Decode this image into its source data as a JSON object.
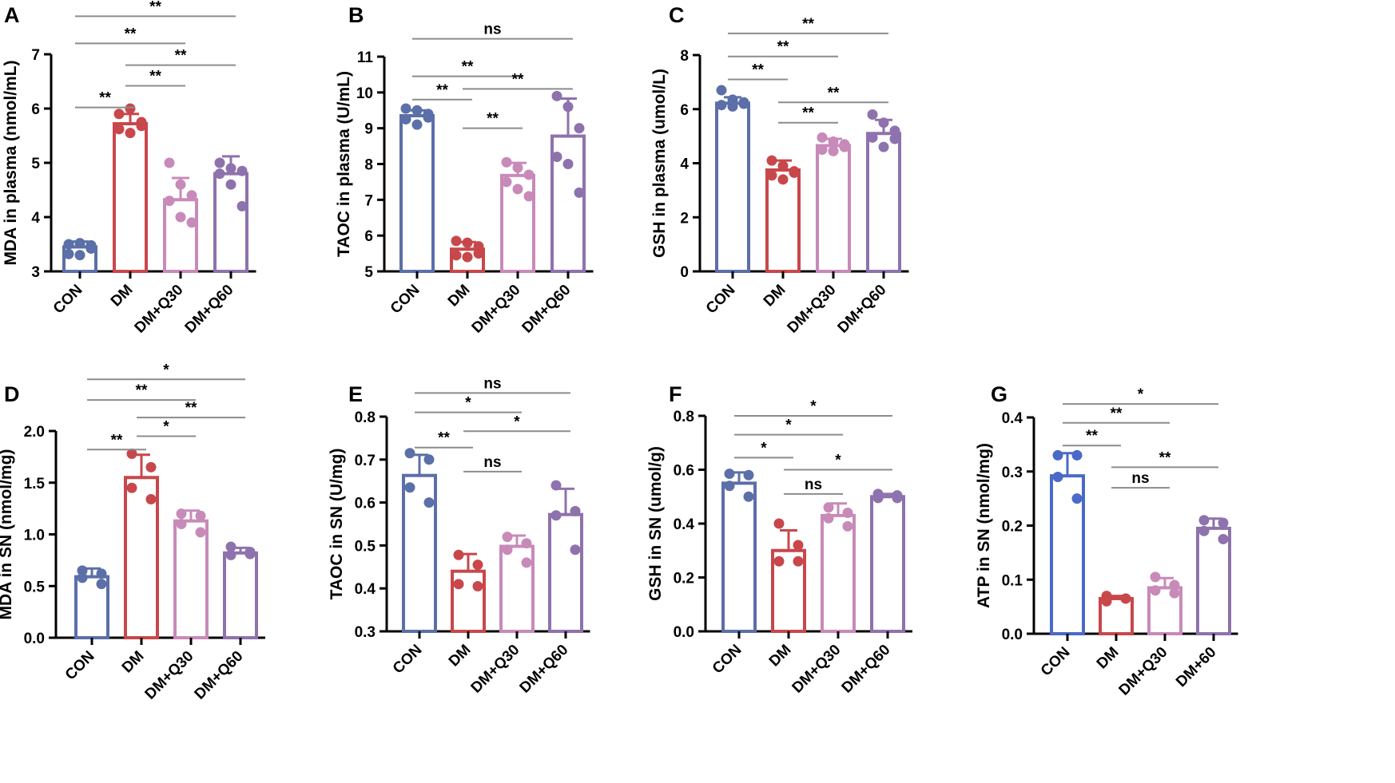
{
  "figure": {
    "title": ""
  },
  "colors": {
    "CON": "#5b6fa8",
    "DM": "#c8474b",
    "DM+Q30": "#c88ab9",
    "DM+Q60": "#8e72ad",
    "CON_G": "#4a69c8",
    "axis": "#000000",
    "bracket": "#8c8c8c"
  },
  "chart_data": [
    {
      "panel": "A",
      "type": "bar",
      "title": "",
      "xlabel": "",
      "ylabel": "MDA in plasma (nmol/mL)",
      "categories": [
        "CON",
        "DM",
        "DM+Q30",
        "DM+Q60"
      ],
      "ylim": [
        3,
        7
      ],
      "yticks": [
        3,
        4,
        5,
        6,
        7
      ],
      "values": [
        3.45,
        5.72,
        4.32,
        4.8
      ],
      "errors": [
        0.1,
        0.18,
        0.4,
        0.32
      ],
      "points": [
        [
          3.5,
          3.52,
          3.48,
          3.32,
          3.3,
          3.42
        ],
        [
          5.9,
          6.0,
          5.68,
          5.62,
          5.55,
          5.75
        ],
        [
          5.0,
          4.6,
          4.4,
          4.3,
          4.0,
          3.9
        ],
        [
          5.0,
          4.9,
          4.85,
          4.8,
          4.6,
          4.2
        ]
      ],
      "comparisons": [
        {
          "from": 0,
          "to": 3,
          "label": "**",
          "y": 7.7
        },
        {
          "from": 0,
          "to": 2,
          "label": "**",
          "y": 7.2
        },
        {
          "from": 1,
          "to": 3,
          "label": "**",
          "y": 6.8
        },
        {
          "from": 1,
          "to": 2,
          "label": "**",
          "y": 6.42
        },
        {
          "from": 0,
          "to": 1,
          "label": "**",
          "y": 6.02
        }
      ]
    },
    {
      "panel": "B",
      "type": "bar",
      "title": "",
      "xlabel": "",
      "ylabel": "TAOC in plasma (U/mL)",
      "categories": [
        "CON",
        "DM",
        "DM+Q30",
        "DM+Q60"
      ],
      "ylim": [
        5,
        11
      ],
      "yticks": [
        5,
        6,
        7,
        8,
        9,
        10,
        11
      ],
      "values": [
        9.35,
        5.62,
        7.68,
        8.78
      ],
      "errors": [
        0.15,
        0.2,
        0.35,
        1.05
      ],
      "points": [
        [
          9.55,
          9.5,
          9.4,
          9.25,
          9.1,
          9.3
        ],
        [
          5.85,
          5.8,
          5.7,
          5.45,
          5.4,
          5.5
        ],
        [
          8.05,
          7.9,
          7.7,
          7.5,
          7.3,
          7.1
        ],
        [
          9.9,
          9.6,
          9.0,
          8.2,
          8.0,
          7.2
        ]
      ],
      "comparisons": [
        {
          "from": 0,
          "to": 3,
          "label": "ns",
          "y": 11.5
        },
        {
          "from": 0,
          "to": 2,
          "label": "**",
          "y": 10.45
        },
        {
          "from": 1,
          "to": 3,
          "label": "**",
          "y": 10.1
        },
        {
          "from": 0,
          "to": 1,
          "label": "**",
          "y": 9.8
        },
        {
          "from": 1,
          "to": 2,
          "label": "**",
          "y": 9.0
        }
      ]
    },
    {
      "panel": "C",
      "type": "bar",
      "title": "",
      "xlabel": "",
      "ylabel": "GSH in plasma (umol/L)",
      "categories": [
        "CON",
        "DM",
        "DM+Q30",
        "DM+Q60"
      ],
      "ylim": [
        0,
        8
      ],
      "yticks": [
        0,
        2,
        4,
        6,
        8
      ],
      "values": [
        6.22,
        3.75,
        4.65,
        5.1
      ],
      "errors": [
        0.22,
        0.35,
        0.25,
        0.5
      ],
      "points": [
        [
          6.7,
          6.35,
          6.2,
          6.15,
          6.1,
          6.25
        ],
        [
          4.1,
          3.9,
          3.7,
          3.55,
          3.4,
          3.65
        ],
        [
          4.95,
          4.8,
          4.6,
          4.5,
          4.45,
          4.7
        ],
        [
          5.8,
          5.5,
          5.2,
          4.95,
          4.6,
          4.9
        ]
      ],
      "comparisons": [
        {
          "from": 0,
          "to": 3,
          "label": "**",
          "y": 8.8
        },
        {
          "from": 0,
          "to": 2,
          "label": "**",
          "y": 7.95
        },
        {
          "from": 0,
          "to": 1,
          "label": "**",
          "y": 7.1
        },
        {
          "from": 1,
          "to": 3,
          "label": "**",
          "y": 6.25
        },
        {
          "from": 1,
          "to": 2,
          "label": "**",
          "y": 5.5
        }
      ]
    },
    {
      "panel": "D",
      "type": "bar",
      "title": "",
      "xlabel": "",
      "ylabel": "MDA in SN (nmol/mg)",
      "categories": [
        "CON",
        "DM",
        "DM+Q30",
        "DM+Q60"
      ],
      "ylim": [
        0,
        2
      ],
      "yticks": [
        0.0,
        0.5,
        1.0,
        1.5,
        2.0
      ],
      "ytickFormat": 1,
      "values": [
        0.59,
        1.55,
        1.13,
        0.82
      ],
      "errors": [
        0.08,
        0.22,
        0.1,
        0.05
      ],
      "points": [
        [
          0.65,
          0.62,
          0.58,
          0.52
        ],
        [
          1.78,
          1.65,
          1.45,
          1.34
        ],
        [
          1.2,
          1.18,
          1.1,
          1.02
        ],
        [
          0.88,
          0.83,
          0.8,
          0.81
        ]
      ],
      "comparisons": [
        {
          "from": 0,
          "to": 3,
          "label": "*",
          "y": 2.5
        },
        {
          "from": 0,
          "to": 2,
          "label": "**",
          "y": 2.3
        },
        {
          "from": 1,
          "to": 3,
          "label": "**",
          "y": 2.13
        },
        {
          "from": 1,
          "to": 2,
          "label": "*",
          "y": 1.95
        },
        {
          "from": 0,
          "to": 1,
          "label": "**",
          "y": 1.82
        }
      ]
    },
    {
      "panel": "E",
      "type": "bar",
      "title": "",
      "xlabel": "",
      "ylabel": "TAOC in SN (U/mg)",
      "categories": [
        "CON",
        "DM",
        "DM+Q30",
        "DM+Q60"
      ],
      "ylim": [
        0.3,
        0.8
      ],
      "yticks": [
        0.3,
        0.4,
        0.5,
        0.6,
        0.7,
        0.8
      ],
      "ytickFormat": 1,
      "values": [
        0.663,
        0.44,
        0.498,
        0.572
      ],
      "errors": [
        0.048,
        0.04,
        0.025,
        0.06
      ],
      "points": [
        [
          0.715,
          0.7,
          0.635,
          0.6
        ],
        [
          0.478,
          0.455,
          0.41,
          0.405
        ],
        [
          0.52,
          0.505,
          0.49,
          0.46
        ],
        [
          0.64,
          0.58,
          0.57,
          0.49
        ]
      ],
      "comparisons": [
        {
          "from": 0,
          "to": 3,
          "label": "ns",
          "y": 0.855
        },
        {
          "from": 0,
          "to": 2,
          "label": "*",
          "y": 0.81
        },
        {
          "from": 1,
          "to": 3,
          "label": "*",
          "y": 0.766
        },
        {
          "from": 0,
          "to": 1,
          "label": "**",
          "y": 0.728
        },
        {
          "from": 1,
          "to": 2,
          "label": "ns",
          "y": 0.672
        }
      ]
    },
    {
      "panel": "F",
      "type": "bar",
      "title": "",
      "xlabel": "",
      "ylabel": "GSH in SN (umol/g)",
      "categories": [
        "CON",
        "DM",
        "DM+Q30",
        "DM+Q60"
      ],
      "ylim": [
        0,
        0.8
      ],
      "yticks": [
        0.0,
        0.2,
        0.4,
        0.6,
        0.8
      ],
      "ytickFormat": 1,
      "values": [
        0.55,
        0.3,
        0.43,
        0.5
      ],
      "errors": [
        0.04,
        0.075,
        0.045,
        0.01
      ],
      "points": [
        [
          0.585,
          0.58,
          0.54,
          0.5
        ],
        [
          0.4,
          0.32,
          0.26,
          0.26
        ],
        [
          0.46,
          0.44,
          0.42,
          0.39
        ],
        [
          0.51,
          0.505,
          0.495,
          0.495
        ]
      ],
      "comparisons": [
        {
          "from": 0,
          "to": 3,
          "label": "*",
          "y": 0.8
        },
        {
          "from": 0,
          "to": 2,
          "label": "*",
          "y": 0.73
        },
        {
          "from": 1,
          "to": 3,
          "label": "*",
          "y": 0.6
        },
        {
          "from": 0,
          "to": 1,
          "label": "*",
          "y": 0.645
        },
        {
          "from": 1,
          "to": 2,
          "label": "ns",
          "y": 0.51
        }
      ]
    },
    {
      "panel": "G",
      "type": "bar",
      "title": "",
      "xlabel": "",
      "ylabel": "ATP in SN (nmol/mg)",
      "categories": [
        "CON",
        "DM",
        "DM+Q30",
        "DM+60"
      ],
      "ylim": [
        0,
        0.4
      ],
      "yticks": [
        0.0,
        0.1,
        0.2,
        0.3,
        0.4
      ],
      "ytickFormat": 1,
      "values": [
        0.292,
        0.065,
        0.085,
        0.195
      ],
      "errors": [
        0.042,
        0.005,
        0.018,
        0.018
      ],
      "points": [
        [
          0.33,
          0.33,
          0.29,
          0.25
        ],
        [
          0.07,
          0.065,
          0.06,
          0.065
        ],
        [
          0.105,
          0.09,
          0.08,
          0.075
        ],
        [
          0.21,
          0.205,
          0.19,
          0.175
        ]
      ],
      "comparisons": [
        {
          "from": 0,
          "to": 3,
          "label": "*",
          "y": 0.425
        },
        {
          "from": 0,
          "to": 2,
          "label": "**",
          "y": 0.39
        },
        {
          "from": 0,
          "to": 1,
          "label": "**",
          "y": 0.348
        },
        {
          "from": 1,
          "to": 3,
          "label": "**",
          "y": 0.308
        },
        {
          "from": 1,
          "to": 2,
          "label": "ns",
          "y": 0.27
        }
      ]
    }
  ]
}
